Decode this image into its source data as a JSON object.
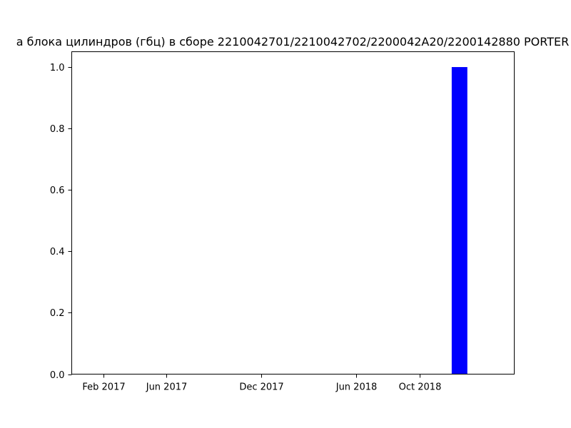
{
  "chart_data": {
    "type": "bar",
    "title": "а блока цилиндров (гбц) в сборе 2210042701/2210042702/2200042A20/2200142880 PORTER",
    "xlabel": "",
    "ylabel": "",
    "x_axis_type": "date",
    "xlim": [
      "2016-12-02",
      "2019-03-31"
    ],
    "ylim": [
      0,
      1.05
    ],
    "x_ticks": [
      {
        "date": "2017-02-01",
        "label": "Feb 2017"
      },
      {
        "date": "2017-06-01",
        "label": "Jun 2017"
      },
      {
        "date": "2017-12-01",
        "label": "Dec 2017"
      },
      {
        "date": "2018-06-01",
        "label": "Jun 2018"
      },
      {
        "date": "2018-10-01",
        "label": "Oct 2018"
      }
    ],
    "y_ticks": [
      0.0,
      0.2,
      0.4,
      0.6,
      0.8,
      1.0
    ],
    "y_tick_labels": [
      "0.0",
      "0.2",
      "0.4",
      "0.6",
      "0.8",
      "1.0"
    ],
    "bars": [
      {
        "start": "2018-12-01",
        "end": "2018-12-31",
        "value": 1.0
      }
    ],
    "bar_color": "#0000ff",
    "grid": false,
    "legend": "none"
  }
}
